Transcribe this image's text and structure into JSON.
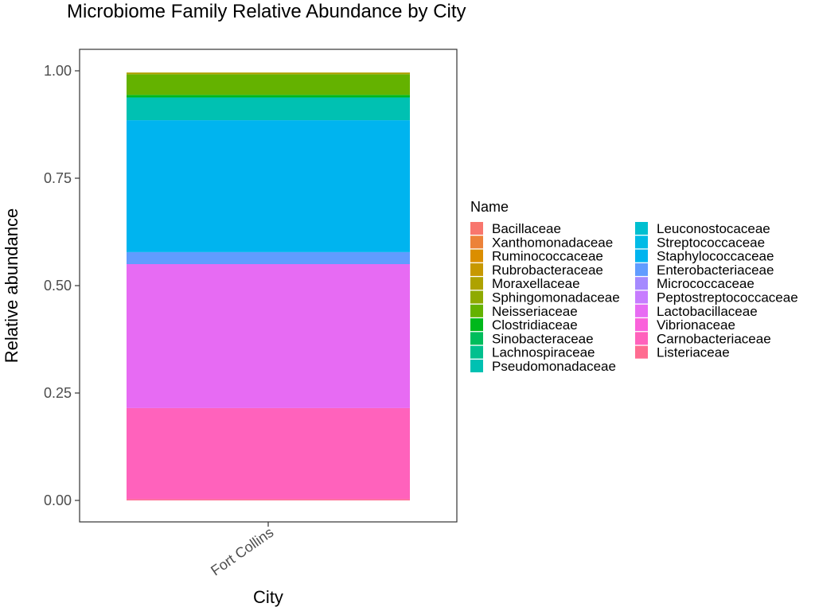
{
  "chart_data": {
    "type": "bar",
    "title": "Microbiome Family Relative Abundance by City",
    "xlabel": "City",
    "ylabel": "Relative abundance",
    "categories": [
      "Fort Collins"
    ],
    "ylim": [
      0,
      1.05
    ],
    "yticks": [
      "0.00",
      "0.25",
      "0.50",
      "0.75",
      "1.00"
    ],
    "ytick_values": [
      0,
      0.25,
      0.5,
      0.75,
      1.0
    ],
    "grid": false,
    "legend_title": "Name",
    "legend_position": "right",
    "series": [
      {
        "name": "Bacillaceae",
        "color": "#F8766D",
        "values": [
          0.0
        ]
      },
      {
        "name": "Xanthomonadaceae",
        "color": "#EC8239",
        "values": [
          0.0
        ]
      },
      {
        "name": "Ruminococcaceae",
        "color": "#DB8E00",
        "values": [
          0.0
        ]
      },
      {
        "name": "Rubrobacteraceae",
        "color": "#C79800",
        "values": [
          0.0
        ]
      },
      {
        "name": "Moraxellaceae",
        "color": "#AEA200",
        "values": [
          0.004
        ]
      },
      {
        "name": "Sphingomonadaceae",
        "color": "#8FAA00",
        "values": [
          0.0
        ]
      },
      {
        "name": "Neisseriaceae",
        "color": "#64B200",
        "values": [
          0.048
        ]
      },
      {
        "name": "Clostridiaceae",
        "color": "#00B81B",
        "values": [
          0.006
        ]
      },
      {
        "name": "Sinobacteraceae",
        "color": "#00BD5C",
        "values": [
          0.0
        ]
      },
      {
        "name": "Lachnospiraceae",
        "color": "#00C08E",
        "values": [
          0.0
        ]
      },
      {
        "name": "Pseudomonadaceae",
        "color": "#00C1B2",
        "values": [
          0.053
        ]
      },
      {
        "name": "Leuconostocaceae",
        "color": "#00BFD0",
        "values": [
          0.0
        ]
      },
      {
        "name": "Streptococcaceae",
        "color": "#00BBE6",
        "values": [
          0.0
        ]
      },
      {
        "name": "Staphylococcaceae",
        "color": "#00B4EF",
        "values": [
          0.307
        ]
      },
      {
        "name": "Enterobacteriaceae",
        "color": "#619CFF",
        "values": [
          0.028
        ]
      },
      {
        "name": "Micrococcaceae",
        "color": "#A58AFF",
        "values": [
          0.0
        ]
      },
      {
        "name": "Peptostreptococcaceae",
        "color": "#C77CFF",
        "values": [
          0.0
        ]
      },
      {
        "name": "Lactobacillaceae",
        "color": "#E76BF3",
        "values": [
          0.335
        ]
      },
      {
        "name": "Vibrionaceae",
        "color": "#FA62DB",
        "values": [
          0.0
        ]
      },
      {
        "name": "Carnobacteriaceae",
        "color": "#FF62BC",
        "values": [
          0.212
        ]
      },
      {
        "name": "Listeriaceae",
        "color": "#FF6C91",
        "values": [
          0.003
        ]
      }
    ]
  }
}
